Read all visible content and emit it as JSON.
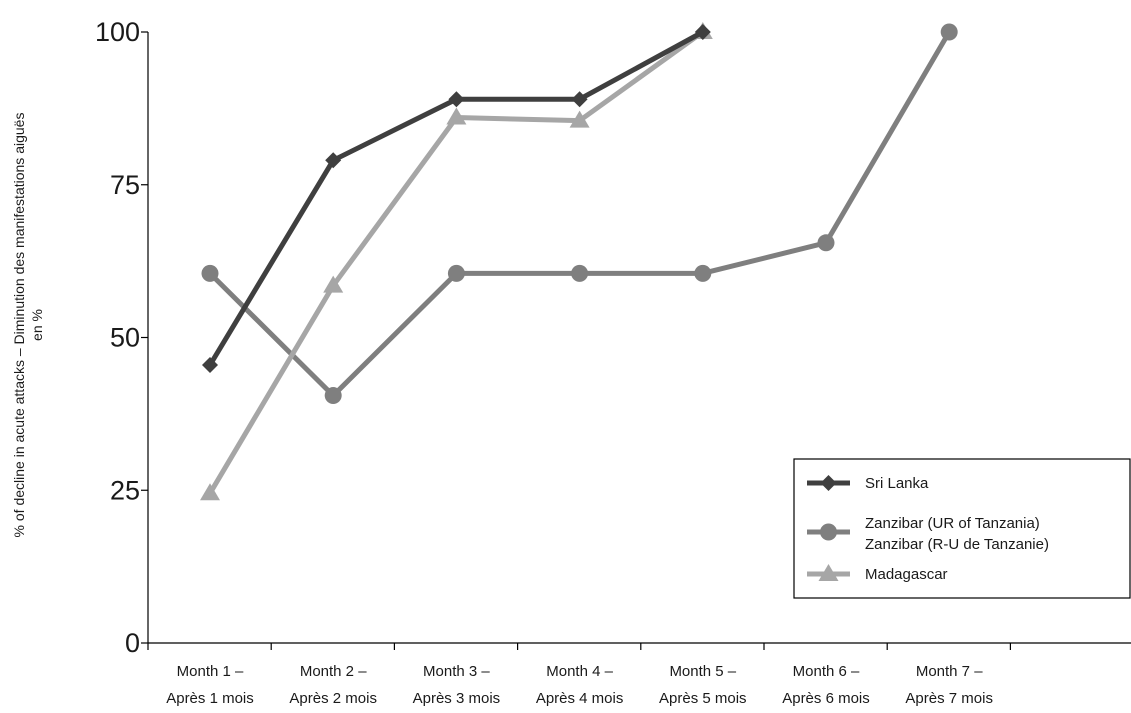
{
  "chart_data": {
    "type": "line",
    "ylabel_line1": "% of decline in acute attacks – Diminution des manifestations aiguës",
    "ylabel_line2": "en %",
    "ylim": [
      0,
      100
    ],
    "yticks": [
      "0",
      "25",
      "50",
      "75",
      "100"
    ],
    "categories": [
      [
        "Month 1 –",
        "Après 1 mois"
      ],
      [
        "Month 2 –",
        "Après 2 mois"
      ],
      [
        "Month 3 –",
        "Après 3 mois"
      ],
      [
        "Month 4 –",
        "Après 4 mois"
      ],
      [
        "Month 5 –",
        "Après 5 mois"
      ],
      [
        "Month 6 –",
        "Après 6 mois"
      ],
      [
        "Month 7 –",
        "Après 7 mois"
      ]
    ],
    "grid": false,
    "legend_position": "right",
    "series": [
      {
        "name": "Sri Lanka",
        "marker": "diamond",
        "color": "#3f3f3f",
        "values": [
          45.5,
          79,
          89,
          89,
          100,
          null,
          null
        ]
      },
      {
        "name": "Zanzibar (UR of Tanzania)",
        "name2": "Zanzibar (R-U de Tanzanie)",
        "marker": "circle",
        "color": "#7f7f7f",
        "values": [
          60.5,
          40.5,
          60.5,
          60.5,
          60.5,
          65.5,
          100
        ]
      },
      {
        "name": "Madagascar",
        "marker": "triangle",
        "color": "#a6a6a6",
        "values": [
          24.5,
          58.5,
          86,
          85.5,
          100,
          null,
          null
        ]
      }
    ]
  }
}
